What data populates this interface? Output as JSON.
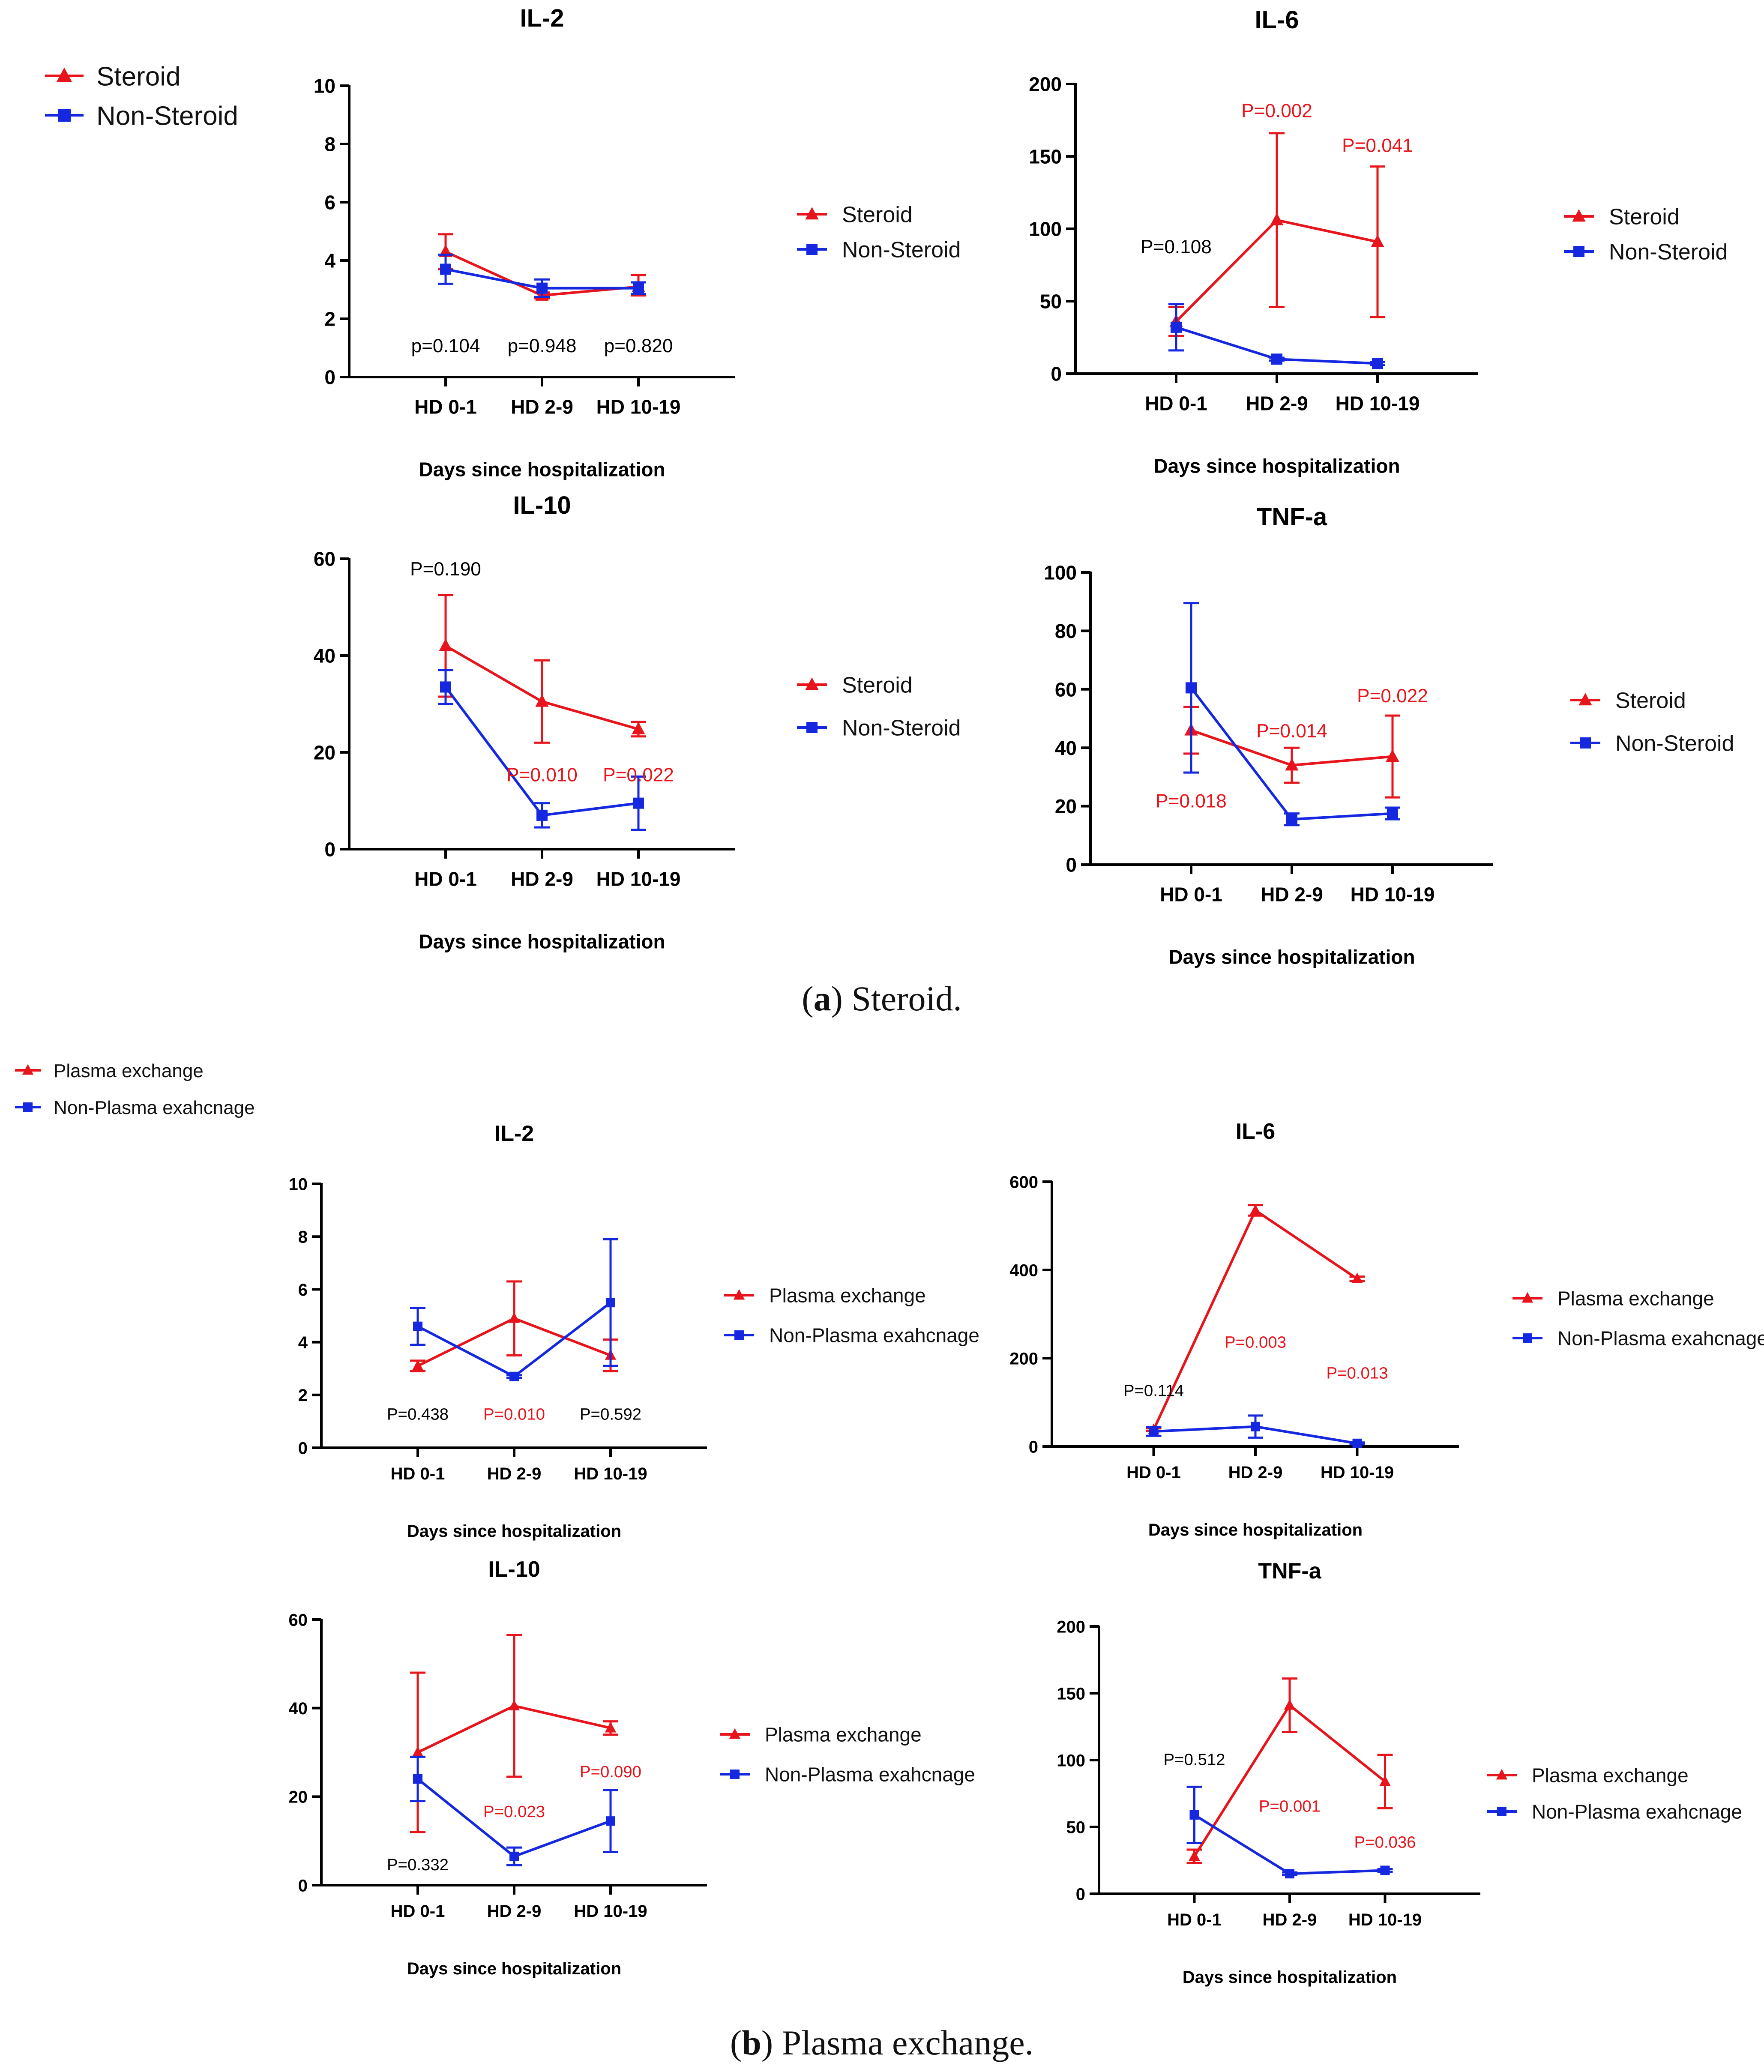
{
  "colors": {
    "red": "#e8141b",
    "blue": "#1528e0",
    "black": "#000000"
  },
  "captions": [
    {
      "bold": "a",
      "rest": ") Steroid."
    },
    {
      "bold": "b",
      "rest": ") Plasma exchange."
    }
  ],
  "top_legends": [
    {
      "items": [
        {
          "label": "Steroid",
          "color": "red",
          "marker": "triangle"
        },
        {
          "label": "Non-Steroid",
          "color": "blue",
          "marker": "square"
        }
      ]
    },
    {
      "items": [
        {
          "label": "Plasma exchange",
          "color": "red",
          "marker": "triangle"
        },
        {
          "label": "Non-Plasma exahcnage",
          "color": "blue",
          "marker": "square"
        }
      ]
    }
  ],
  "chart_data": [
    {
      "type": "line",
      "panel": "a",
      "title": "IL-2",
      "categories": [
        "HD 0-1",
        "HD 2-9",
        "HD 10-19"
      ],
      "xlabel": "Days since hospitalization",
      "ylabel": "",
      "ylim": [
        0,
        10
      ],
      "yticks": [
        0,
        2,
        4,
        6,
        8,
        10
      ],
      "series": [
        {
          "name": "Steroid",
          "color": "red",
          "marker": "triangle",
          "values": [
            4.3,
            2.8,
            3.1
          ],
          "err_up": [
            0.6,
            0.1,
            0.4
          ],
          "err_down": [
            0.6,
            0.1,
            0.3
          ]
        },
        {
          "name": "Non-Steroid",
          "color": "blue",
          "marker": "square",
          "values": [
            3.7,
            3.05,
            3.05
          ],
          "err_up": [
            0.5,
            0.3,
            0.2
          ],
          "err_down": [
            0.5,
            0.3,
            0.2
          ]
        }
      ],
      "annotations": [
        {
          "text": "p=0.104",
          "cat": 0,
          "y": 1.1,
          "color": "black"
        },
        {
          "text": "p=0.948",
          "cat": 1,
          "y": 1.1,
          "color": "black"
        },
        {
          "text": "p=0.820",
          "cat": 2,
          "y": 1.1,
          "color": "black"
        }
      ],
      "legend": {
        "items": [
          "Steroid",
          "Non-Steroid"
        ],
        "position": "right"
      }
    },
    {
      "type": "line",
      "panel": "a",
      "title": "IL-6",
      "categories": [
        "HD 0-1",
        "HD 2-9",
        "HD 10-19"
      ],
      "xlabel": "Days since hospitalization",
      "ylabel": "",
      "ylim": [
        0,
        200
      ],
      "yticks": [
        0,
        50,
        100,
        150,
        200
      ],
      "series": [
        {
          "name": "Steroid",
          "color": "red",
          "marker": "triangle",
          "values": [
            36,
            106,
            91
          ],
          "err_up": [
            10,
            60,
            52
          ],
          "err_down": [
            10,
            60,
            52
          ]
        },
        {
          "name": "Non-Steroid",
          "color": "blue",
          "marker": "square",
          "values": [
            32,
            10,
            7
          ],
          "err_up": [
            16,
            1,
            1
          ],
          "err_down": [
            16,
            1,
            1
          ]
        }
      ],
      "annotations": [
        {
          "text": "P=0.108",
          "cat": 0,
          "y": 88,
          "color": "black"
        },
        {
          "text": "P=0.002",
          "cat": 1,
          "y": 182,
          "color": "red"
        },
        {
          "text": "P=0.041",
          "cat": 2,
          "y": 158,
          "color": "red"
        }
      ],
      "legend": {
        "items": [
          "Steroid",
          "Non-Steroid"
        ],
        "position": "right"
      }
    },
    {
      "type": "line",
      "panel": "a",
      "title": "IL-10",
      "categories": [
        "HD 0-1",
        "HD 2-9",
        "HD 10-19"
      ],
      "xlabel": "Days since hospitalization",
      "ylabel": "",
      "ylim": [
        0,
        60
      ],
      "yticks": [
        0,
        20,
        40,
        60
      ],
      "series": [
        {
          "name": "Steroid",
          "color": "red",
          "marker": "triangle",
          "values": [
            42,
            30.5,
            24.8
          ],
          "err_up": [
            10.5,
            8.5,
            1.5
          ],
          "err_down": [
            10.5,
            8.5,
            1.5
          ]
        },
        {
          "name": "Non-Steroid",
          "color": "blue",
          "marker": "square",
          "values": [
            33.5,
            7,
            9.5
          ],
          "err_up": [
            3.5,
            2.5,
            5.5
          ],
          "err_down": [
            3.5,
            2.5,
            5.5
          ]
        }
      ],
      "annotations": [
        {
          "text": "P=0.190",
          "cat": 0,
          "y": 58,
          "color": "black"
        },
        {
          "text": "P=0.010",
          "cat": 1,
          "y": 15.5,
          "color": "red"
        },
        {
          "text": "P=0.022",
          "cat": 2,
          "y": 15.5,
          "color": "red"
        }
      ],
      "legend": {
        "items": [
          "Steroid",
          "Non-Steroid"
        ],
        "position": "right"
      }
    },
    {
      "type": "line",
      "panel": "a",
      "title": "TNF-a",
      "categories": [
        "HD 0-1",
        "HD 2-9",
        "HD 10-19"
      ],
      "xlabel": "Days since hospitalization",
      "ylabel": "",
      "ylim": [
        0,
        100
      ],
      "yticks": [
        0,
        20,
        40,
        60,
        80,
        100
      ],
      "series": [
        {
          "name": "Steroid",
          "color": "red",
          "marker": "triangle",
          "values": [
            46,
            34,
            37
          ],
          "err_up": [
            8,
            6,
            14
          ],
          "err_down": [
            8,
            6,
            14
          ]
        },
        {
          "name": "Non-Steroid",
          "color": "blue",
          "marker": "square",
          "values": [
            60.5,
            15.5,
            17.5
          ],
          "err_up": [
            29,
            2,
            2
          ],
          "err_down": [
            29,
            2,
            2
          ]
        }
      ],
      "annotations": [
        {
          "text": "P=0.018",
          "cat": 0,
          "y": 22,
          "color": "red"
        },
        {
          "text": "P=0.014",
          "cat": 1,
          "y": 46,
          "color": "red"
        },
        {
          "text": "P=0.022",
          "cat": 2,
          "y": 58,
          "color": "red"
        }
      ],
      "legend": {
        "items": [
          "Steroid",
          "Non-Steroid"
        ],
        "position": "right"
      }
    },
    {
      "type": "line",
      "panel": "b",
      "title": "IL-2",
      "categories": [
        "HD 0-1",
        "HD 2-9",
        "HD 10-19"
      ],
      "xlabel": "Days since hospitalization",
      "ylabel": "",
      "ylim": [
        0,
        10
      ],
      "yticks": [
        0,
        2,
        4,
        6,
        8,
        10
      ],
      "series": [
        {
          "name": "Plasma exchange",
          "color": "red",
          "marker": "triangle",
          "values": [
            3.1,
            4.9,
            3.5
          ],
          "err_up": [
            0.2,
            1.4,
            0.6
          ],
          "err_down": [
            0.2,
            1.4,
            0.6
          ]
        },
        {
          "name": "Non-Plasma exahcnage",
          "color": "blue",
          "marker": "square",
          "values": [
            4.6,
            2.7,
            5.5
          ],
          "err_up": [
            0.7,
            0.05,
            2.4
          ],
          "err_down": [
            0.7,
            0.05,
            2.4
          ]
        }
      ],
      "annotations": [
        {
          "text": "P=0.438",
          "cat": 0,
          "y": 1.3,
          "color": "black"
        },
        {
          "text": "P=0.010",
          "cat": 1,
          "y": 1.3,
          "color": "red"
        },
        {
          "text": "P=0.592",
          "cat": 2,
          "y": 1.3,
          "color": "black"
        }
      ],
      "legend": {
        "items": [
          "Plasma exchange",
          "Non-Plasma exahcnage"
        ],
        "position": "right"
      }
    },
    {
      "type": "line",
      "panel": "b",
      "title": "IL-6",
      "categories": [
        "HD 0-1",
        "HD 2-9",
        "HD 10-19"
      ],
      "xlabel": "Days since hospitalization",
      "ylabel": "",
      "ylim": [
        0,
        600
      ],
      "yticks": [
        0,
        200,
        400,
        600
      ],
      "series": [
        {
          "name": "Plasma exchange",
          "color": "red",
          "marker": "triangle",
          "values": [
            38,
            535,
            380
          ],
          "err_up": [
            3,
            12,
            5
          ],
          "err_down": [
            3,
            12,
            5
          ]
        },
        {
          "name": "Non-Plasma exahcnage",
          "color": "blue",
          "marker": "square",
          "values": [
            34,
            45,
            7
          ],
          "err_up": [
            10,
            25,
            2
          ],
          "err_down": [
            10,
            25,
            2
          ]
        }
      ],
      "annotations": [
        {
          "text": "P=0.114",
          "cat": 0,
          "y": 128,
          "color": "black"
        },
        {
          "text": "P=0.003",
          "cat": 1,
          "y": 238,
          "color": "red"
        },
        {
          "text": "P=0.013",
          "cat": 2,
          "y": 168,
          "color": "red"
        }
      ],
      "legend": {
        "items": [
          "Plasma exchange",
          "Non-Plasma exahcnage"
        ],
        "position": "right"
      }
    },
    {
      "type": "line",
      "panel": "b",
      "title": "IL-10",
      "categories": [
        "HD 0-1",
        "HD 2-9",
        "HD 10-19"
      ],
      "xlabel": "Days since hospitalization",
      "ylabel": "",
      "ylim": [
        0,
        60
      ],
      "yticks": [
        0,
        20,
        40,
        60
      ],
      "series": [
        {
          "name": "Plasma exchange",
          "color": "red",
          "marker": "triangle",
          "values": [
            30,
            40.5,
            35.5
          ],
          "err_up": [
            18,
            16,
            1.5
          ],
          "err_down": [
            18,
            16,
            1.5
          ]
        },
        {
          "name": "Non-Plasma exahcnage",
          "color": "blue",
          "marker": "square",
          "values": [
            24,
            6.5,
            14.5
          ],
          "err_up": [
            5,
            2,
            7
          ],
          "err_down": [
            5,
            2,
            7
          ]
        }
      ],
      "annotations": [
        {
          "text": "P=0.332",
          "cat": 0,
          "y": 4.8,
          "color": "black"
        },
        {
          "text": "P=0.023",
          "cat": 1,
          "y": 16.8,
          "color": "red"
        },
        {
          "text": "P=0.090",
          "cat": 2,
          "y": 25.8,
          "color": "red"
        }
      ],
      "legend": {
        "items": [
          "Plasma exchange",
          "Non-Plasma exahcnage"
        ],
        "position": "right"
      }
    },
    {
      "type": "line",
      "panel": "b",
      "title": "TNF-a",
      "categories": [
        "HD 0-1",
        "HD 2-9",
        "HD 10-19"
      ],
      "xlabel": "Days since hospitalization",
      "ylabel": "",
      "ylim": [
        0,
        200
      ],
      "yticks": [
        0,
        50,
        100,
        150,
        200
      ],
      "series": [
        {
          "name": "Plasma exchange",
          "color": "red",
          "marker": "triangle",
          "values": [
            28,
            141,
            84
          ],
          "err_up": [
            5,
            20,
            20
          ],
          "err_down": [
            5,
            20,
            20
          ]
        },
        {
          "name": "Non-Plasma exahcnage",
          "color": "blue",
          "marker": "square",
          "values": [
            59,
            15,
            17.5
          ],
          "err_up": [
            21,
            1,
            1
          ],
          "err_down": [
            21,
            1,
            1
          ]
        }
      ],
      "annotations": [
        {
          "text": "P=0.512",
          "cat": 0,
          "y": 101,
          "color": "black"
        },
        {
          "text": "P=0.001",
          "cat": 1,
          "y": 66,
          "color": "red"
        },
        {
          "text": "P=0.036",
          "cat": 2,
          "y": 39,
          "color": "red"
        }
      ],
      "legend": {
        "items": [
          "Plasma exchange",
          "Non-Plasma exahcnage"
        ],
        "position": "right"
      }
    }
  ]
}
